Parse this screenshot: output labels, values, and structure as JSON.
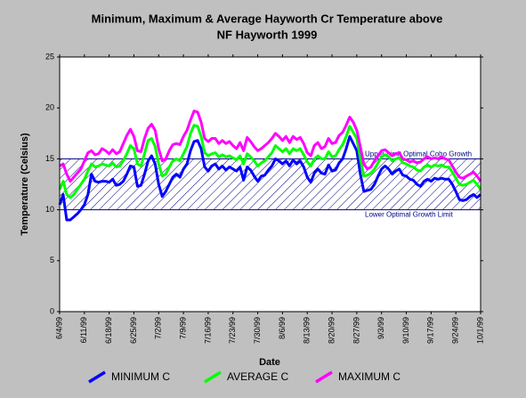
{
  "chart_data": {
    "type": "line",
    "title": [
      "Minimum, Maximum & Average Hayworth Cr Temperature above",
      "NF Hayworth 1999"
    ],
    "x_label": "Date",
    "y_label": "Temperature (Celsius)",
    "ylim": [
      0,
      25
    ],
    "yticks": [
      0,
      5,
      10,
      15,
      20,
      25
    ],
    "grid": false,
    "legend": "bottom",
    "optimal_band": {
      "low": 10,
      "high": 15,
      "color": "#000080",
      "upper_label": "Upper Limit Optimal Coho Growth",
      "lower_label": "Lower Optimal Growth Limit"
    },
    "categories": [
      "6/4/99",
      null,
      null,
      null,
      null,
      null,
      null,
      "6/11/99",
      null,
      null,
      null,
      null,
      null,
      null,
      "6/18/99",
      null,
      null,
      null,
      null,
      null,
      null,
      "6/25/99",
      null,
      null,
      null,
      null,
      null,
      null,
      "7/2/99",
      null,
      null,
      null,
      null,
      null,
      null,
      "7/9/99",
      null,
      null,
      null,
      null,
      null,
      null,
      "7/16/99",
      null,
      null,
      null,
      null,
      null,
      null,
      "7/23/99",
      null,
      null,
      null,
      null,
      null,
      null,
      "7/30/99",
      null,
      null,
      null,
      null,
      null,
      null,
      "8/6/99",
      null,
      null,
      null,
      null,
      null,
      null,
      "8/13/99",
      null,
      null,
      null,
      null,
      null,
      null,
      "8/20/99",
      null,
      null,
      null,
      null,
      null,
      null,
      "8/27/99",
      null,
      null,
      null,
      null,
      null,
      null,
      "9/3/99",
      null,
      null,
      null,
      null,
      null,
      null,
      "9/10/99",
      null,
      null,
      null,
      null,
      null,
      null,
      "9/17/99",
      null,
      null,
      null,
      null,
      null,
      null,
      "9/24/99",
      null,
      null,
      null,
      null,
      null,
      null,
      "10/1/99"
    ],
    "series": [
      {
        "name": "MINIMUM C",
        "color": "#0000ff",
        "values": [
          10.5,
          11.5,
          9.0,
          9.0,
          9.3,
          9.6,
          10.0,
          10.5,
          11.5,
          13.5,
          12.8,
          12.7,
          12.8,
          12.8,
          12.7,
          13.0,
          12.4,
          12.5,
          12.8,
          13.5,
          14.3,
          14.2,
          12.3,
          12.4,
          13.5,
          14.8,
          15.3,
          14.5,
          12.5,
          11.3,
          11.8,
          12.5,
          13.2,
          13.5,
          13.2,
          14.0,
          14.5,
          15.8,
          16.7,
          16.8,
          16.0,
          14.2,
          13.8,
          14.3,
          14.5,
          14.0,
          14.3,
          13.9,
          14.2,
          14.0,
          13.8,
          14.2,
          12.9,
          14.2,
          13.9,
          13.3,
          12.8,
          13.3,
          13.4,
          13.9,
          14.3,
          15.0,
          14.8,
          14.5,
          14.8,
          14.3,
          14.9,
          14.5,
          14.8,
          14.2,
          13.2,
          12.7,
          13.6,
          14.0,
          13.6,
          13.5,
          14.4,
          13.8,
          13.9,
          14.6,
          15.0,
          16.0,
          17.2,
          16.5,
          15.8,
          13.5,
          11.8,
          11.9,
          12.0,
          12.5,
          13.3,
          14.0,
          14.3,
          14.0,
          13.5,
          13.8,
          14.0,
          13.4,
          13.3,
          13.0,
          12.9,
          12.5,
          12.3,
          12.8,
          13.0,
          12.8,
          13.1,
          13.0,
          13.1,
          13.0,
          13.0,
          12.5,
          11.8,
          11.0,
          10.9,
          11.0,
          11.3,
          11.5,
          11.2,
          11.5
        ]
      },
      {
        "name": "AVERAGE C",
        "color": "#00ff00",
        "values": [
          12.0,
          12.8,
          11.5,
          11.2,
          11.5,
          12.0,
          12.5,
          13.0,
          13.8,
          14.5,
          14.2,
          14.3,
          14.5,
          14.4,
          14.3,
          14.6,
          14.2,
          14.3,
          14.8,
          15.5,
          16.3,
          16.0,
          14.5,
          14.3,
          15.5,
          16.8,
          17.0,
          16.2,
          14.5,
          13.3,
          13.5,
          14.2,
          14.8,
          15.0,
          14.8,
          15.5,
          16.2,
          17.5,
          18.3,
          18.2,
          17.2,
          15.6,
          15.3,
          15.5,
          15.6,
          15.2,
          15.4,
          15.2,
          15.3,
          15.1,
          14.9,
          15.3,
          14.5,
          15.5,
          15.2,
          14.8,
          14.3,
          14.6,
          14.8,
          15.2,
          15.6,
          16.3,
          16.0,
          15.7,
          16.0,
          15.5,
          16.0,
          15.8,
          16.0,
          15.4,
          14.7,
          14.3,
          15.0,
          15.3,
          15.0,
          15.0,
          15.7,
          15.2,
          15.3,
          15.9,
          16.4,
          17.2,
          18.2,
          17.6,
          17.0,
          15.0,
          13.3,
          13.4,
          13.6,
          14.0,
          14.6,
          15.2,
          15.4,
          15.2,
          14.8,
          15.0,
          15.1,
          14.6,
          14.5,
          14.3,
          14.2,
          13.9,
          13.8,
          14.2,
          14.4,
          14.2,
          14.4,
          14.3,
          14.4,
          14.2,
          14.2,
          13.7,
          13.1,
          12.5,
          12.4,
          12.5,
          12.7,
          12.9,
          12.5,
          12.0
        ]
      },
      {
        "name": "MAXIMUM C",
        "color": "#ff00ff",
        "values": [
          14.3,
          14.5,
          13.5,
          12.8,
          13.2,
          13.6,
          14.0,
          14.8,
          15.6,
          15.8,
          15.4,
          15.5,
          16.0,
          15.8,
          15.5,
          15.9,
          15.5,
          15.7,
          16.5,
          17.3,
          17.9,
          17.2,
          15.8,
          15.7,
          17.0,
          18.0,
          18.4,
          17.8,
          16.0,
          14.8,
          15.0,
          15.8,
          16.4,
          16.5,
          16.4,
          17.2,
          17.8,
          18.8,
          19.7,
          19.6,
          18.6,
          17.0,
          16.7,
          17.0,
          17.0,
          16.5,
          16.8,
          16.5,
          16.7,
          16.3,
          16.0,
          16.6,
          15.8,
          17.1,
          16.7,
          16.2,
          15.8,
          16.0,
          16.3,
          16.6,
          17.0,
          17.5,
          17.2,
          16.8,
          17.2,
          16.6,
          17.2,
          16.9,
          17.1,
          16.5,
          15.6,
          15.3,
          16.3,
          16.6,
          16.0,
          16.2,
          17.0,
          16.5,
          16.6,
          17.3,
          17.6,
          18.3,
          19.1,
          18.6,
          17.8,
          16.2,
          14.5,
          14.0,
          14.2,
          14.8,
          15.3,
          15.8,
          15.9,
          15.6,
          15.3,
          15.5,
          15.6,
          15.0,
          14.9,
          14.7,
          14.8,
          14.6,
          14.7,
          15.0,
          15.2,
          15.0,
          15.1,
          15.0,
          15.2,
          15.0,
          14.9,
          14.3,
          13.7,
          13.2,
          13.1,
          13.3,
          13.5,
          13.7,
          13.3,
          12.8
        ]
      }
    ]
  }
}
